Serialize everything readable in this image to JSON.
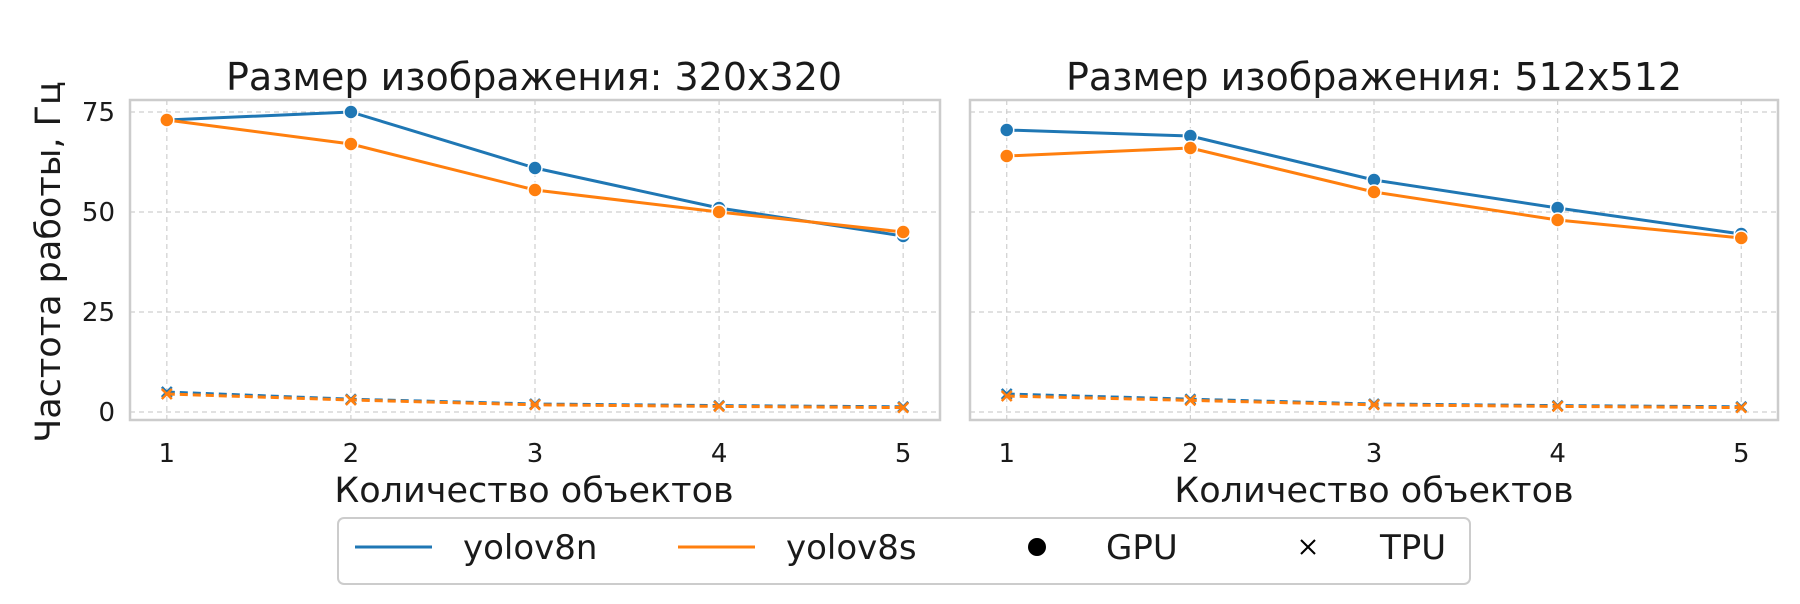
{
  "shared": {
    "ylabel": "Частота работы, Гц",
    "xlabel": "Количество объектов"
  },
  "legend": {
    "items": [
      {
        "key": "yolov8n",
        "label": "yolov8n",
        "kind": "line",
        "color": "#1f77b4"
      },
      {
        "key": "yolov8s",
        "label": "yolov8s",
        "kind": "line",
        "color": "#ff7f0e"
      },
      {
        "key": "gpu",
        "label": "GPU",
        "kind": "dot",
        "color": "#000000"
      },
      {
        "key": "tpu",
        "label": "TPU",
        "kind": "cross",
        "color": "#000000"
      }
    ]
  },
  "chart_data": [
    {
      "type": "line",
      "title": "Размер изображения: 320x320",
      "xlabel": "Количество объектов",
      "ylabel": "Частота работы, Гц",
      "x": [
        1,
        2,
        3,
        4,
        5
      ],
      "xlim": [
        0.8,
        5.2
      ],
      "ylim": [
        -2,
        78
      ],
      "yticks": [
        0,
        25,
        50,
        75
      ],
      "grid": true,
      "series": [
        {
          "name": "yolov8n",
          "device": "GPU",
          "color": "#1f77b4",
          "marker": "dot",
          "dashed": false,
          "values": [
            73,
            75,
            61,
            51,
            44
          ]
        },
        {
          "name": "yolov8s",
          "device": "GPU",
          "color": "#ff7f0e",
          "marker": "dot",
          "dashed": false,
          "values": [
            73,
            67,
            55.5,
            50,
            45
          ]
        },
        {
          "name": "yolov8n",
          "device": "TPU",
          "color": "#1f77b4",
          "marker": "cross",
          "dashed": true,
          "values": [
            5,
            3.2,
            2,
            1.6,
            1.3
          ]
        },
        {
          "name": "yolov8s",
          "device": "TPU",
          "color": "#ff7f0e",
          "marker": "cross",
          "dashed": true,
          "values": [
            4.5,
            3,
            1.8,
            1.4,
            1.1
          ]
        }
      ]
    },
    {
      "type": "line",
      "title": "Размер изображения: 512x512",
      "xlabel": "Количество объектов",
      "ylabel": "Частота работы, Гц",
      "x": [
        1,
        2,
        3,
        4,
        5
      ],
      "xlim": [
        0.8,
        5.2
      ],
      "ylim": [
        -2,
        78
      ],
      "yticks": [
        0,
        25,
        50,
        75
      ],
      "grid": true,
      "series": [
        {
          "name": "yolov8n",
          "device": "GPU",
          "color": "#1f77b4",
          "marker": "dot",
          "dashed": false,
          "values": [
            70.5,
            69,
            58,
            51,
            44.5
          ]
        },
        {
          "name": "yolov8s",
          "device": "GPU",
          "color": "#ff7f0e",
          "marker": "dot",
          "dashed": false,
          "values": [
            64,
            66,
            55,
            48,
            43.5
          ]
        },
        {
          "name": "yolov8n",
          "device": "TPU",
          "color": "#1f77b4",
          "marker": "cross",
          "dashed": true,
          "values": [
            4.5,
            3.2,
            2,
            1.6,
            1.3
          ]
        },
        {
          "name": "yolov8s",
          "device": "TPU",
          "color": "#ff7f0e",
          "marker": "cross",
          "dashed": true,
          "values": [
            4,
            2.9,
            1.8,
            1.4,
            1.1
          ]
        }
      ]
    }
  ]
}
